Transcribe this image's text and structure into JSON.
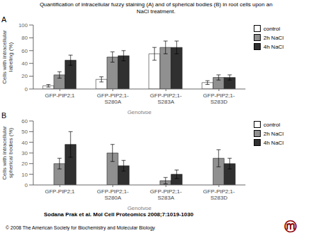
{
  "chart_data": [
    {
      "type": "bar",
      "title": "Quantification of intracellular fuzzy staining (A) and of spherical bodies (B) in root cells upon an\nNaCl treatment.",
      "annotations": [
        {
          "text": "A"
        }
      ],
      "categories": [
        "GFP-PIP2;1",
        "GFP-PIP2;1-\nS280A",
        "GFP-PIP2;1-\nS283A",
        "GFP-PIP2;1-\nS283D"
      ],
      "xlabel": "Genotype",
      "ylabel": "Cells with intracellular\nlabeling (%)",
      "ylim": [
        0,
        100
      ],
      "yticks": [
        0,
        20,
        40,
        60,
        80,
        100
      ],
      "grid": false,
      "legend": "upper right",
      "series": [
        {
          "name": "control",
          "color": "white",
          "values": [
            5,
            15,
            55,
            10
          ],
          "errors": [
            2,
            4,
            10,
            3
          ]
        },
        {
          "name": "2h NaCl",
          "color": "#909090",
          "values": [
            22,
            50,
            65,
            18
          ],
          "errors": [
            5,
            8,
            10,
            4
          ]
        },
        {
          "name": "4h NaCl",
          "color": "#303030",
          "values": [
            45,
            52,
            65,
            18
          ],
          "errors": [
            8,
            8,
            10,
            4
          ]
        }
      ]
    },
    {
      "type": "bar",
      "subtitle": "Sodana Prak et al. Mol Cell Proteomics 2008;7:1019-1030",
      "annotations": [
        {
          "text": "B"
        },
        {
          "text": "© 2008 The American Society for Biochemistry and Molecular Biology"
        },
        {
          "text": "ⓜ",
          "color": "#8B0000"
        }
      ],
      "categories": [
        "GFP-PIP2;1",
        "GFP-PIP2;1-\nS280A",
        "GFP-PIP2;1-\nS283A",
        "GFP-PIP2;1-\nS283D"
      ],
      "xlabel": "Genotype",
      "ylabel": "Cells with intracellular\nspherical bodies (%)",
      "ylim": [
        0,
        60
      ],
      "yticks": [
        0,
        10,
        20,
        30,
        40,
        50,
        60
      ],
      "grid": false,
      "legend": "upper right",
      "series": [
        {
          "name": "control",
          "color": "white",
          "values": [
            0,
            0,
            0,
            0
          ],
          "errors": [
            0,
            0,
            0,
            0
          ]
        },
        {
          "name": "2h NaCl",
          "color": "#909090",
          "values": [
            20,
            30,
            4,
            25
          ],
          "errors": [
            5,
            8,
            3,
            8
          ]
        },
        {
          "name": "4h NaCl",
          "color": "#303030",
          "values": [
            38,
            18,
            10,
            20
          ],
          "errors": [
            12,
            5,
            4,
            5
          ]
        }
      ]
    }
  ]
}
